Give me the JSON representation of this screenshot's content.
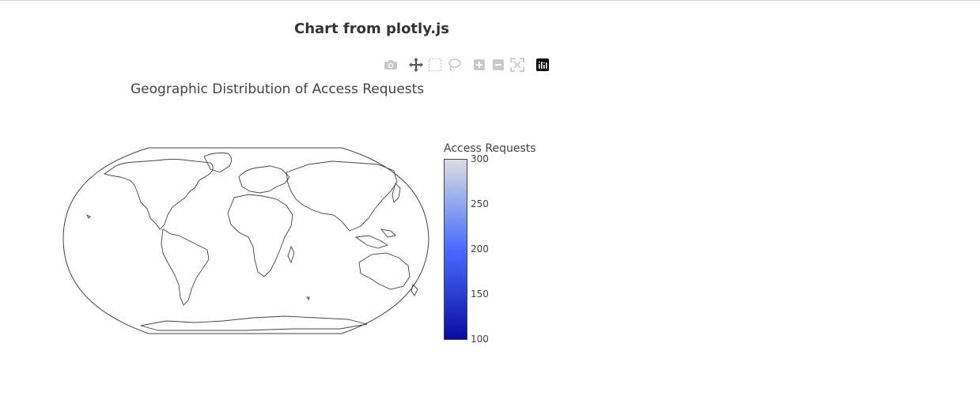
{
  "page": {
    "title": "Chart from plotly.js"
  },
  "modebar": {
    "buttons": [
      {
        "name": "download-image-button",
        "icon": "camera-icon"
      },
      {
        "name": "pan-button",
        "icon": "pan-arrows-icon"
      },
      {
        "name": "box-select-button",
        "icon": "box-select-icon"
      },
      {
        "name": "lasso-select-button",
        "icon": "lasso-icon"
      },
      {
        "name": "zoom-in-button",
        "icon": "zoom-in-icon"
      },
      {
        "name": "zoom-out-button",
        "icon": "zoom-out-icon"
      },
      {
        "name": "reset-view-button",
        "icon": "reset-icon"
      },
      {
        "name": "plotly-logo-button",
        "icon": "plotly-logo-icon"
      }
    ]
  },
  "chart_data": {
    "type": "choropleth",
    "title": "Geographic Distribution of Access Requests",
    "projection": "robinson",
    "locations": [],
    "values": [],
    "colorbar": {
      "title": "Access Requests",
      "range": [
        100,
        300
      ],
      "ticks": [
        300,
        250,
        200,
        150,
        100
      ],
      "colorscale": [
        "#0a0aa0",
        "#2a3fd1",
        "#4a6bff",
        "#8fa6ef",
        "#dcdde2"
      ]
    }
  }
}
